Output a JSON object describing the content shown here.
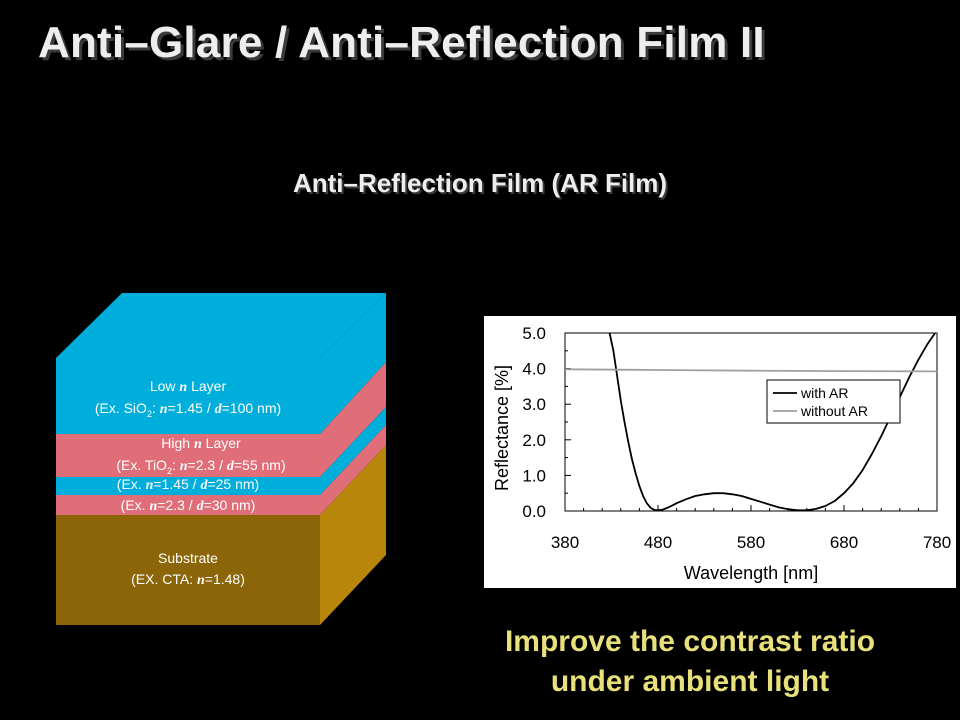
{
  "slide": {
    "title": "Anti–Glare / Anti–Reflection Film II",
    "subtitle": "Anti–Reflection Film (AR Film)",
    "conclusion_line1": "Improve the contrast ratio",
    "conclusion_line2": "under ambient light"
  },
  "layer_stack": {
    "colors": {
      "cyan": "#00aedb",
      "pink": "#df6e78",
      "substrate": "#b8860b",
      "substrate_dark": "#8b6508"
    },
    "layers": [
      {
        "name": "Low n Layer",
        "pre": "Low ",
        "n": "n",
        "post": " Layer",
        "detail": "(Ex. SiO₂: n=1.45 / d=100 nm)",
        "d_pre": "(Ex. SiO",
        "d_sub": "2",
        "d_mid": ": ",
        "d_n": "n",
        "d_mid2": "=1.45 / ",
        "d_d": "d",
        "d_post": "=100 nm)"
      },
      {
        "name": "High n Layer",
        "pre": "High ",
        "n": "n",
        "post": " Layer",
        "detail": "(Ex. TiO₂: n=2.3 / d=55 nm)",
        "d_pre": "(Ex. TiO",
        "d_sub": "2",
        "d_mid": ": ",
        "d_n": "n",
        "d_mid2": "=2.3 / ",
        "d_d": "d",
        "d_post": "=55 nm)"
      },
      {
        "detail": "(Ex. n=1.45 / d=25 nm)",
        "d_pre": "(Ex. ",
        "d_n": "n",
        "d_mid2": "=1.45 / ",
        "d_d": "d",
        "d_post": "=25 nm)"
      },
      {
        "detail": "(Ex. n=2.3 / d=30 nm)",
        "d_pre": "(Ex. ",
        "d_n": "n",
        "d_mid2": "=2.3 / ",
        "d_d": "d",
        "d_post": "=30 nm)"
      },
      {
        "name": "Substrate",
        "detail": "(EX. CTA: n=1.48)",
        "d_pre": "(EX. CTA: ",
        "d_n": "n",
        "d_post": "=1.48)"
      }
    ]
  },
  "chart_data": {
    "type": "line",
    "xlabel": "Wavelength [nm]",
    "ylabel": "Reflectance [%]",
    "xlim": [
      380,
      780
    ],
    "ylim": [
      0.0,
      5.0
    ],
    "xticks": [
      380,
      480,
      580,
      680,
      780
    ],
    "xtick_labels": [
      "380",
      "480",
      "580",
      "680",
      "780"
    ],
    "yticks": [
      0.0,
      1.0,
      2.0,
      3.0,
      4.0,
      5.0
    ],
    "ytick_labels": [
      "0.0",
      "1.0",
      "2.0",
      "3.0",
      "4.0",
      "5.0"
    ],
    "grid": false,
    "legend_position": "top-right",
    "series": [
      {
        "name": "with AR",
        "color": "#000000",
        "x": [
          428,
          432,
          436,
          440,
          444,
          448,
          452,
          456,
          460,
          464,
          468,
          472,
          476,
          480,
          485,
          490,
          495,
          500,
          510,
          520,
          530,
          540,
          550,
          560,
          570,
          580,
          590,
          600,
          610,
          620,
          630,
          640,
          650,
          660,
          670,
          680,
          690,
          700,
          710,
          720,
          730,
          740,
          750,
          760,
          770,
          778
        ],
        "y": [
          5.0,
          4.5,
          3.8,
          3.1,
          2.5,
          1.95,
          1.45,
          1.05,
          0.7,
          0.42,
          0.22,
          0.09,
          0.03,
          0.02,
          0.04,
          0.09,
          0.15,
          0.22,
          0.33,
          0.42,
          0.47,
          0.5,
          0.5,
          0.47,
          0.42,
          0.34,
          0.26,
          0.18,
          0.1,
          0.05,
          0.02,
          0.02,
          0.06,
          0.14,
          0.28,
          0.5,
          0.78,
          1.15,
          1.6,
          2.1,
          2.65,
          3.2,
          3.75,
          4.25,
          4.7,
          5.0
        ]
      },
      {
        "name": "without AR",
        "color": "#a0a0a0",
        "x": [
          380,
          480,
          580,
          680,
          780
        ],
        "y": [
          3.98,
          3.96,
          3.94,
          3.93,
          3.92
        ]
      }
    ]
  }
}
